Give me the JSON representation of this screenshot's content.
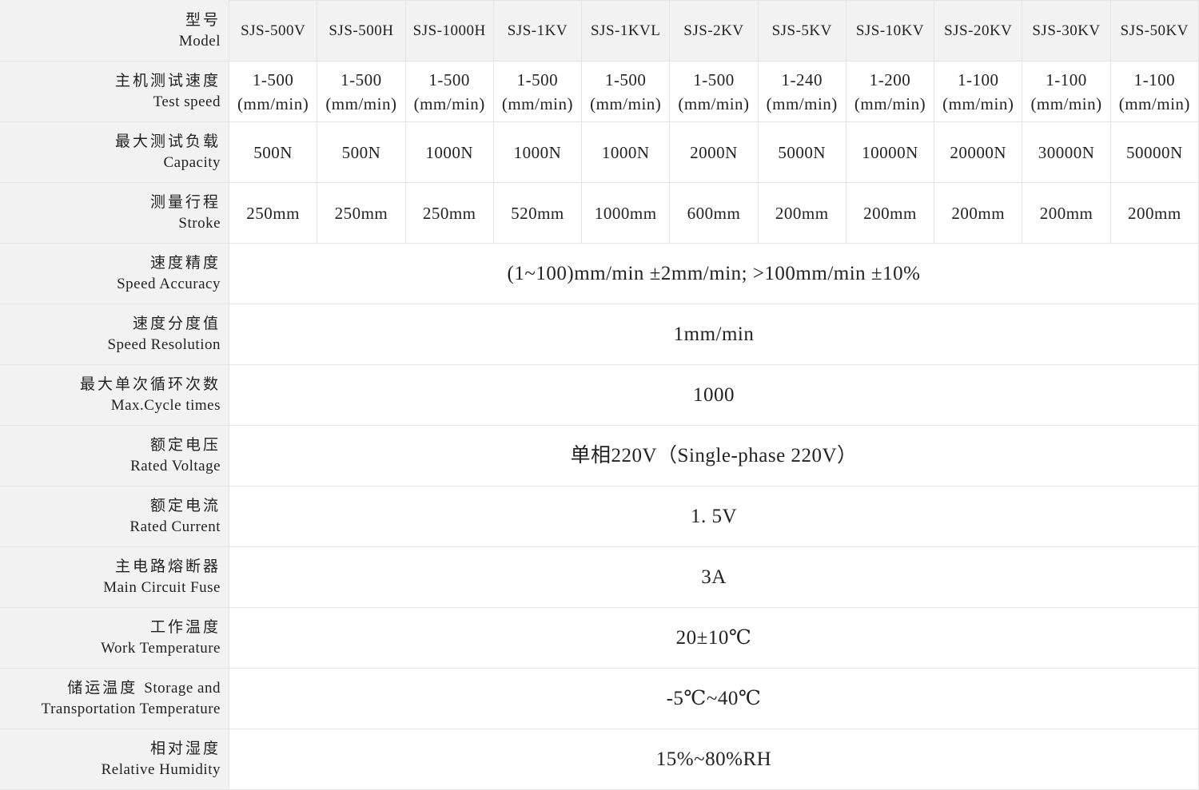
{
  "header": {
    "zh": "型号",
    "en": "Model",
    "models": [
      "SJS-500V",
      "SJS-500H",
      "SJS-1000H",
      "SJS-1KV",
      "SJS-1KVL",
      "SJS-2KV",
      "SJS-5KV",
      "SJS-10KV",
      "SJS-20KV",
      "SJS-30KV",
      "SJS-50KV"
    ]
  },
  "rows": [
    {
      "zh": "主机测试速度",
      "en": "Test speed",
      "values": [
        "1-500\n(mm/min)",
        "1-500\n(mm/min)",
        "1-500\n(mm/min)",
        "1-500\n(mm/min)",
        "1-500\n(mm/min)",
        "1-500\n(mm/min)",
        "1-240\n(mm/min)",
        "1-200\n(mm/min)",
        "1-100\n(mm/min)",
        "1-100\n(mm/min)",
        "1-100\n(mm/min)"
      ]
    },
    {
      "zh": "最大测试负载",
      "en": "Capacity",
      "values": [
        "500N",
        "500N",
        "1000N",
        "1000N",
        "1000N",
        "2000N",
        "5000N",
        "10000N",
        "20000N",
        "30000N",
        "50000N"
      ]
    },
    {
      "zh": "测量行程",
      "en": "Stroke",
      "values": [
        "250mm",
        "250mm",
        "250mm",
        "520mm",
        "1000mm",
        "600mm",
        "200mm",
        "200mm",
        "200mm",
        "200mm",
        "200mm"
      ]
    },
    {
      "zh": "速度精度",
      "en": "Speed Accuracy",
      "value": "(1~100)mm/min ±2mm/min; >100mm/min ±10%"
    },
    {
      "zh": "速度分度值",
      "en": "Speed Resolution",
      "value": "1mm/min"
    },
    {
      "zh": "最大单次循环次数",
      "en": "Max.Cycle times",
      "value": "1000"
    },
    {
      "zh": "额定电压",
      "en": "Rated Voltage",
      "value": "单相220V（Single-phase 220V）"
    },
    {
      "zh": "额定电流",
      "en": "Rated Current",
      "value": "1. 5V"
    },
    {
      "zh": "主电路熔断器",
      "en": "Main Circuit Fuse",
      "value": "3A"
    },
    {
      "zh": "工作温度",
      "en": "Work Temperature",
      "value": "20±10℃"
    },
    {
      "zh": "储运温度",
      "en": "Storage and\nTransportation  Temperature",
      "value": "-5℃~40℃"
    },
    {
      "zh": "相对湿度",
      "en": "Relative Humidity",
      "value": "15%~80%RH"
    }
  ]
}
